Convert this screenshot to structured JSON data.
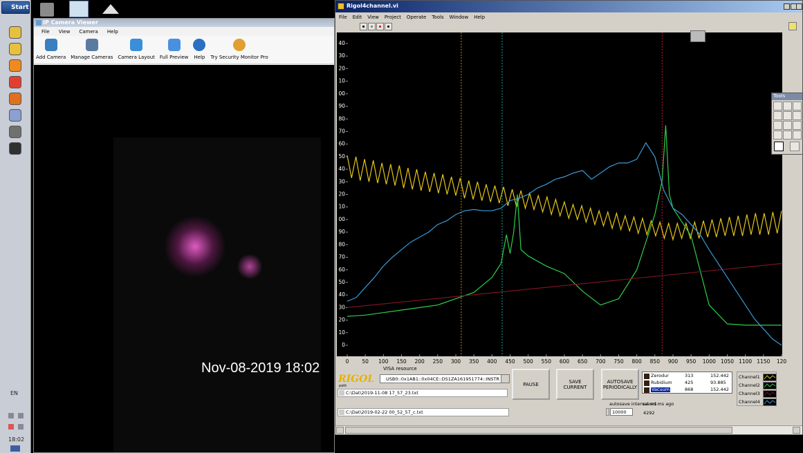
{
  "taskbar": {
    "start": "Start",
    "language": "EN",
    "clock": "18:02"
  },
  "camera_window": {
    "title": "IP Camera Viewer",
    "menu": [
      "File",
      "View",
      "Camera",
      "Help"
    ],
    "toolbar": [
      "Add Camera",
      "Manage Cameras",
      "Camera Layout",
      "Full Preview",
      "Help",
      "Try Security Monitor Pro"
    ],
    "timestamp": "Nov-08-2019 18:02"
  },
  "rigol_window": {
    "title": "Rigol4channel.vi",
    "menu": [
      "File",
      "Edit",
      "View",
      "Project",
      "Operate",
      "Tools",
      "Window",
      "Help"
    ],
    "tools_title": "Tools",
    "logo": "RIGOL",
    "visa_label": "VISA resource",
    "visa_resource": "USB0::0x1AB1::0x04CE::DS1ZA161951774::INSTR",
    "path_label": "path",
    "path": "C:\\Dat\\2019-11-08 17_57_23.txt",
    "path2": "C:\\Dat\\2019-02-22 00_52_57_c.txt",
    "buttons": [
      "PAUSE",
      "SAVE CURRENT",
      "AUTOSAVE PERIODICALLY"
    ],
    "materials": [
      [
        "Zerodur",
        313,
        152.442
      ],
      [
        "Rubidium",
        425,
        93.885
      ],
      [
        "Vacuum",
        868,
        152.442
      ]
    ],
    "autosave_label": "autosave interval ms",
    "autosave_interval": 10000,
    "saved_label": "saved ms ago",
    "saved_ago": 4292
  },
  "chart_data": {
    "type": "line",
    "xlim": [
      0,
      1200
    ],
    "ylim": [
      0,
      240
    ],
    "xticks": [
      0,
      50,
      100,
      150,
      200,
      250,
      300,
      350,
      400,
      450,
      500,
      550,
      600,
      650,
      700,
      750,
      800,
      850,
      900,
      950,
      1000,
      1050,
      1100,
      1150,
      {
        "value": 1200,
        "label": "120"
      }
    ],
    "yticks": [
      0,
      10,
      20,
      30,
      40,
      50,
      60,
      70,
      80,
      90,
      {
        "value": 100,
        "label": "00"
      },
      {
        "value": 110,
        "label": "10"
      },
      {
        "value": 120,
        "label": "20"
      },
      {
        "value": 130,
        "label": "30"
      },
      {
        "value": 140,
        "label": "40"
      },
      {
        "value": 150,
        "label": "50"
      },
      {
        "value": 160,
        "label": "60"
      },
      {
        "value": 170,
        "label": "70"
      },
      {
        "value": 180,
        "label": "80"
      },
      {
        "value": 190,
        "label": "90"
      },
      {
        "value": 200,
        "label": "00"
      },
      {
        "value": 210,
        "label": "10"
      },
      {
        "value": 220,
        "label": "20"
      },
      {
        "value": 230,
        "label": "30"
      },
      {
        "value": 240,
        "label": "40"
      }
    ],
    "cursors": [
      {
        "x": 315,
        "color": "#d97a00"
      },
      {
        "x": 428,
        "color": "#1aa39a"
      },
      {
        "x": 870,
        "color": "#c0202a"
      }
    ],
    "series": [
      {
        "name": "Channel1",
        "color": "#e6c619",
        "x": [
          0,
          12,
          24,
          36,
          48,
          60,
          72,
          84,
          96,
          108,
          120,
          132,
          144,
          156,
          168,
          180,
          192,
          204,
          216,
          228,
          240,
          252,
          264,
          276,
          288,
          300,
          312,
          324,
          336,
          348,
          360,
          372,
          384,
          396,
          408,
          420,
          432,
          444,
          456,
          468,
          480,
          492,
          504,
          516,
          528,
          540,
          552,
          564,
          576,
          588,
          600,
          612,
          624,
          636,
          648,
          660,
          672,
          684,
          696,
          708,
          720,
          732,
          744,
          756,
          768,
          780,
          792,
          804,
          816,
          828,
          840,
          852,
          864,
          876,
          888,
          900,
          912,
          924,
          936,
          948,
          960,
          972,
          984,
          996,
          1008,
          1020,
          1032,
          1044,
          1056,
          1068,
          1080,
          1092,
          1104,
          1116,
          1128,
          1140,
          1152,
          1164,
          1176,
          1188,
          1200
        ],
        "values": [
          151,
          133,
          150,
          131,
          148,
          130,
          147,
          129,
          145,
          128,
          144,
          127,
          143,
          125,
          141,
          124,
          140,
          123,
          138,
          122,
          137,
          121,
          136,
          120,
          134,
          119,
          133,
          117,
          131,
          116,
          130,
          115,
          128,
          114,
          127,
          113,
          126,
          111,
          124,
          110,
          123,
          109,
          121,
          108,
          119,
          106,
          118,
          104,
          116,
          103,
          114,
          101,
          112,
          100,
          111,
          98,
          109,
          96,
          107,
          95,
          106,
          93,
          105,
          92,
          103,
          91,
          102,
          89,
          101,
          88,
          99,
          87,
          98,
          85,
          97,
          84,
          97,
          85,
          97,
          85,
          98,
          85,
          99,
          86,
          100,
          86,
          101,
          87,
          102,
          87,
          103,
          87,
          104,
          88,
          105,
          88,
          105,
          88,
          106,
          89,
          107
        ]
      },
      {
        "name": "Channel2",
        "color": "#2fcf4a",
        "x": [
          0,
          50,
          100,
          150,
          200,
          250,
          300,
          350,
          400,
          425,
          440,
          450,
          460,
          470,
          480,
          500,
          550,
          600,
          650,
          700,
          750,
          800,
          850,
          870,
          880,
          890,
          900,
          950,
          1000,
          1050,
          1100,
          1150,
          1200
        ],
        "values": [
          23,
          24,
          26,
          28,
          30,
          32,
          37,
          42,
          54,
          65,
          88,
          73,
          90,
          120,
          76,
          71,
          63,
          57,
          43,
          32,
          37,
          60,
          104,
          131,
          175,
          120,
          109,
          87,
          32,
          17,
          16,
          16,
          16
        ]
      },
      {
        "name": "Channel3",
        "color": "#7a1422",
        "x": [
          0,
          1200
        ],
        "values": [
          30,
          65
        ]
      },
      {
        "name": "Channel4",
        "color": "#3d9ad6",
        "x": [
          0,
          25,
          50,
          75,
          100,
          125,
          150,
          175,
          200,
          225,
          250,
          275,
          300,
          325,
          350,
          375,
          400,
          425,
          450,
          475,
          500,
          525,
          550,
          575,
          600,
          625,
          650,
          675,
          700,
          725,
          750,
          775,
          800,
          825,
          850,
          875,
          900,
          925,
          950,
          975,
          1000,
          1025,
          1050,
          1075,
          1100,
          1125,
          1150,
          1175,
          1200
        ],
        "values": [
          35,
          38,
          46,
          54,
          63,
          70,
          76,
          82,
          86,
          90,
          96,
          99,
          104,
          107,
          108,
          107,
          107,
          109,
          115,
          117,
          120,
          125,
          128,
          132,
          134,
          137,
          139,
          132,
          137,
          142,
          145,
          145,
          148,
          161,
          150,
          123,
          109,
          104,
          96,
          88,
          76,
          65,
          54,
          43,
          32,
          21,
          13,
          5,
          0
        ]
      }
    ]
  }
}
